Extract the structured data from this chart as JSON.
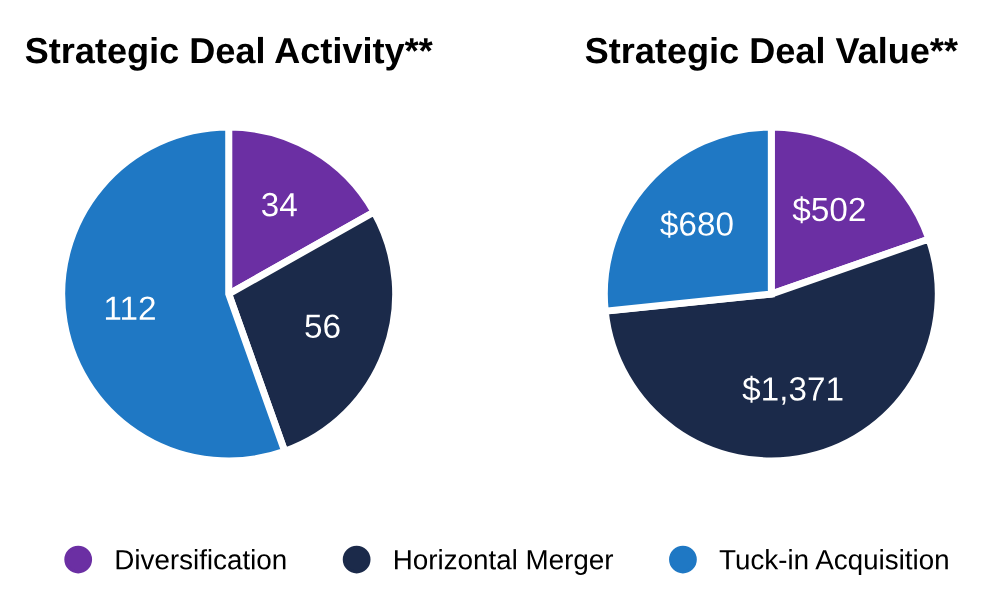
{
  "chart_data": [
    {
      "type": "pie",
      "title": "Strategic Deal Activity**",
      "categories": [
        "Diversification",
        "Horizontal Merger",
        "Tuck-in Acquisition"
      ],
      "values": [
        34,
        56,
        112
      ],
      "colors": [
        "#6b2fa3",
        "#1b2a4a",
        "#1f78c4"
      ],
      "data_labels": true,
      "legend": "bottom"
    },
    {
      "type": "pie",
      "title": "Strategic Deal Value**",
      "values": [
        502,
        1371,
        680
      ],
      "colors": [
        "#6b2fa3",
        "#1b2a4a",
        "#1f78c4"
      ],
      "value_labels": [
        "$502",
        "$1,371",
        "$680"
      ]
    }
  ]
}
